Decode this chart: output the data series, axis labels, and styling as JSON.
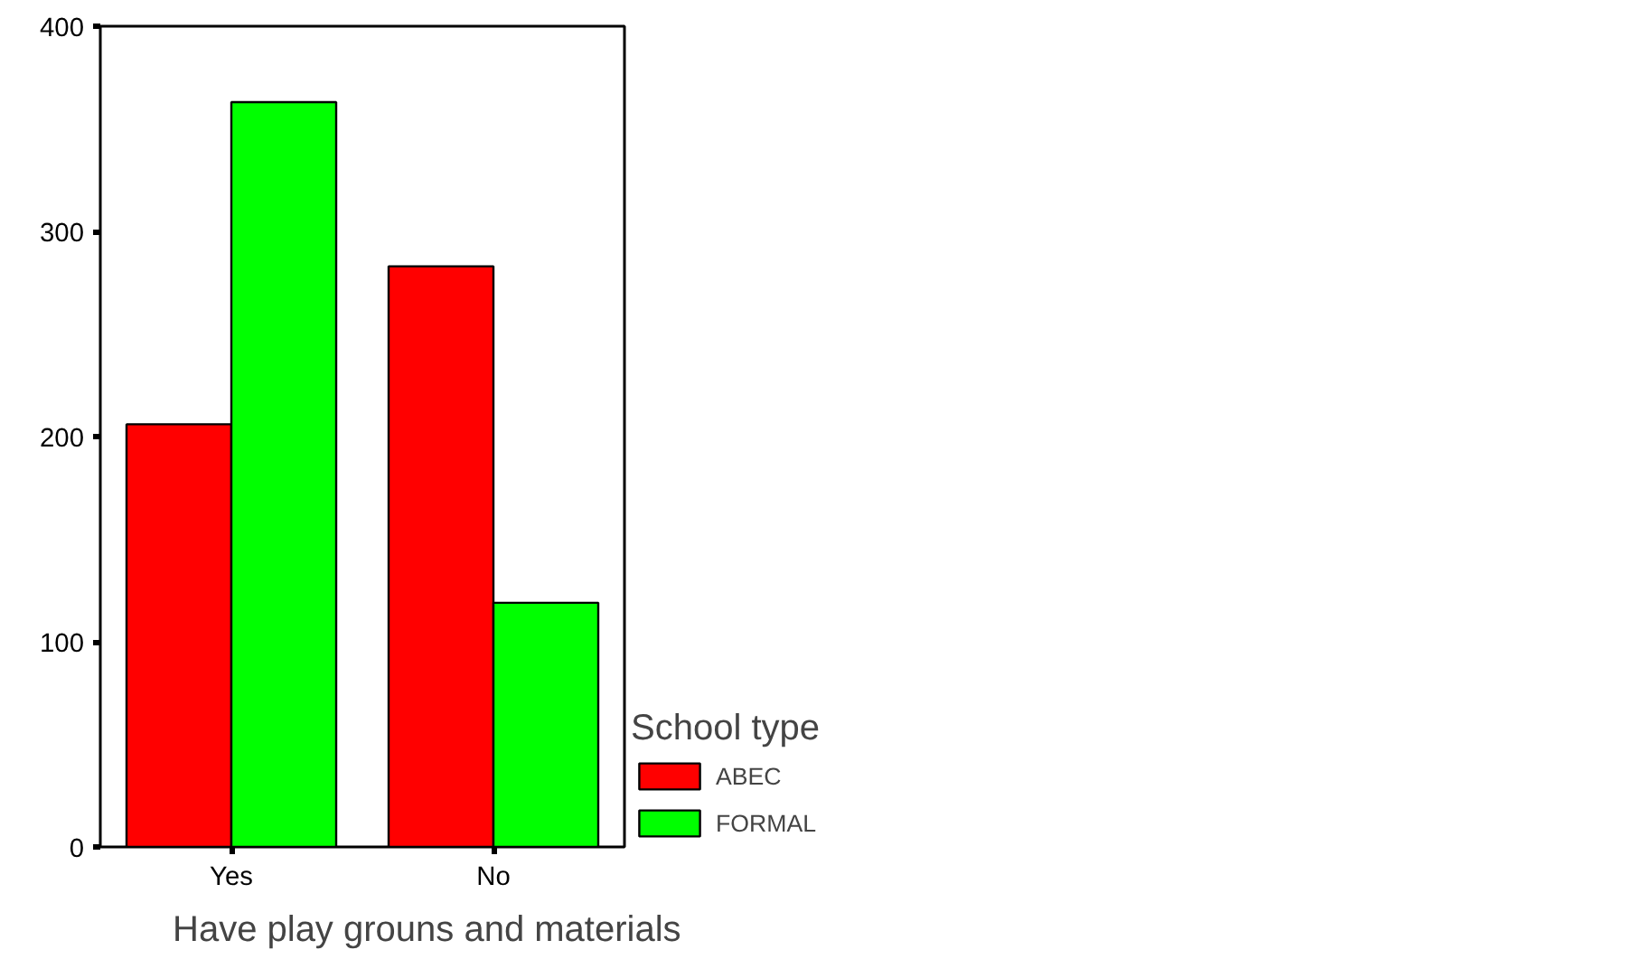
{
  "chart_data": {
    "type": "bar",
    "categories": [
      "Yes",
      "No"
    ],
    "xlabel": "Have play grouns and materials",
    "legend_title": "School type",
    "legend": "right",
    "ylim": [
      0,
      400
    ],
    "yticks": [
      0,
      100,
      200,
      300,
      400
    ],
    "grid": false,
    "series": [
      {
        "name": "ABEC",
        "color": "#ff0000",
        "values": [
          206,
          283
        ]
      },
      {
        "name": "FORMAL",
        "color": "#00ff00",
        "values": [
          363,
          119
        ]
      }
    ]
  }
}
